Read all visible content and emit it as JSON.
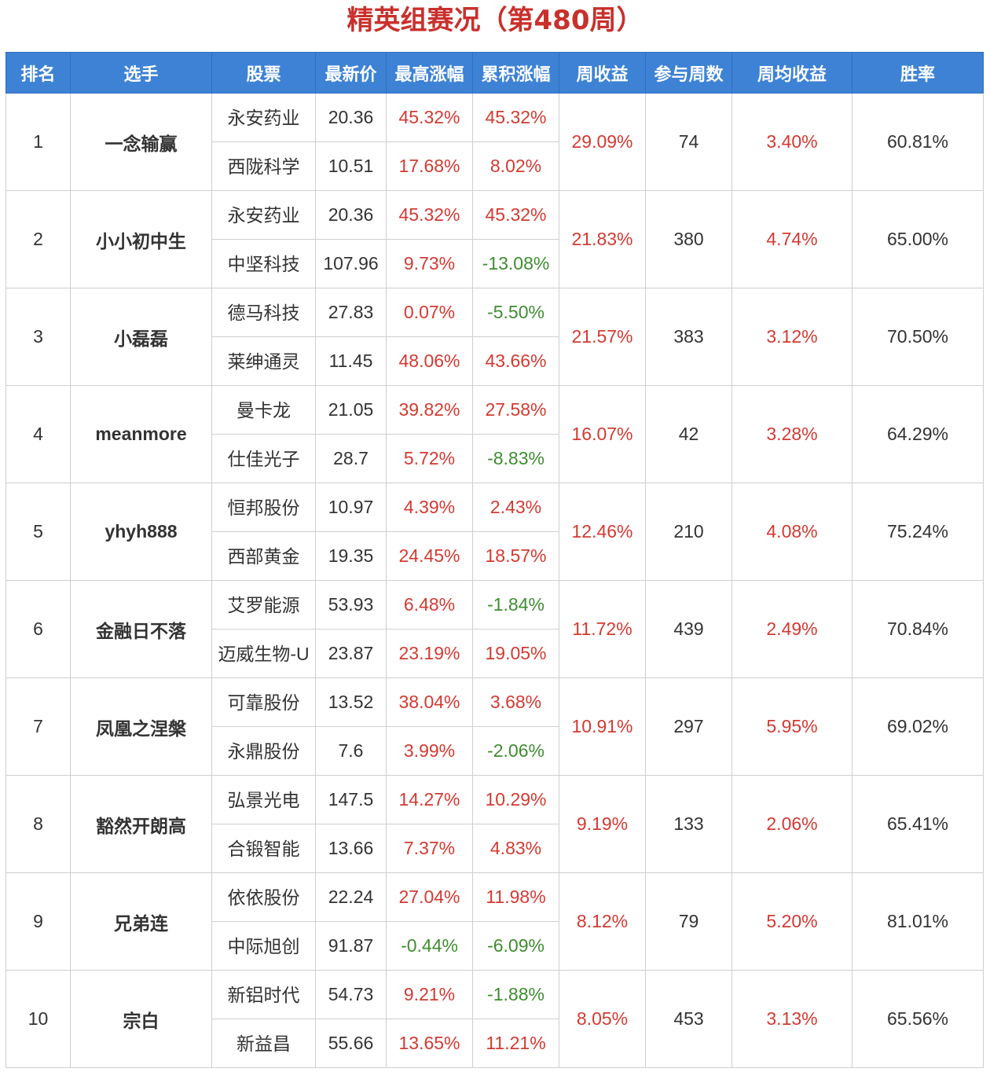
{
  "title": "精英组赛况（第480周）",
  "headers": [
    "排名",
    "选手",
    "股票",
    "最新价",
    "最高涨幅",
    "累积涨幅",
    "周收益",
    "参与周数",
    "周均收益",
    "胜率"
  ],
  "rows": [
    {
      "rank": "1",
      "player": "一念输赢",
      "week_return": "29.09%",
      "weeks": "74",
      "avg_return": "3.40%",
      "win_rate": "60.81%",
      "stocks": [
        {
          "name": "永安药业",
          "price": "20.36",
          "max_gain": "45.32%",
          "cum_gain": "45.32%"
        },
        {
          "name": "西陇科学",
          "price": "10.51",
          "max_gain": "17.68%",
          "cum_gain": "8.02%"
        }
      ]
    },
    {
      "rank": "2",
      "player": "小小初中生",
      "week_return": "21.83%",
      "weeks": "380",
      "avg_return": "4.74%",
      "win_rate": "65.00%",
      "stocks": [
        {
          "name": "永安药业",
          "price": "20.36",
          "max_gain": "45.32%",
          "cum_gain": "45.32%"
        },
        {
          "name": "中坚科技",
          "price": "107.96",
          "max_gain": "9.73%",
          "cum_gain": "-13.08%"
        }
      ]
    },
    {
      "rank": "3",
      "player": "小磊磊",
      "week_return": "21.57%",
      "weeks": "383",
      "avg_return": "3.12%",
      "win_rate": "70.50%",
      "stocks": [
        {
          "name": "德马科技",
          "price": "27.83",
          "max_gain": "0.07%",
          "cum_gain": "-5.50%"
        },
        {
          "name": "莱绅通灵",
          "price": "11.45",
          "max_gain": "48.06%",
          "cum_gain": "43.66%"
        }
      ]
    },
    {
      "rank": "4",
      "player": "meanmore",
      "week_return": "16.07%",
      "weeks": "42",
      "avg_return": "3.28%",
      "win_rate": "64.29%",
      "stocks": [
        {
          "name": "曼卡龙",
          "price": "21.05",
          "max_gain": "39.82%",
          "cum_gain": "27.58%"
        },
        {
          "name": "仕佳光子",
          "price": "28.7",
          "max_gain": "5.72%",
          "cum_gain": "-8.83%"
        }
      ]
    },
    {
      "rank": "5",
      "player": "yhyh888",
      "week_return": "12.46%",
      "weeks": "210",
      "avg_return": "4.08%",
      "win_rate": "75.24%",
      "stocks": [
        {
          "name": "恒邦股份",
          "price": "10.97",
          "max_gain": "4.39%",
          "cum_gain": "2.43%"
        },
        {
          "name": "西部黄金",
          "price": "19.35",
          "max_gain": "24.45%",
          "cum_gain": "18.57%"
        }
      ]
    },
    {
      "rank": "6",
      "player": "金融日不落",
      "week_return": "11.72%",
      "weeks": "439",
      "avg_return": "2.49%",
      "win_rate": "70.84%",
      "stocks": [
        {
          "name": "艾罗能源",
          "price": "53.93",
          "max_gain": "6.48%",
          "cum_gain": "-1.84%"
        },
        {
          "name": "迈威生物-U",
          "price": "23.87",
          "max_gain": "23.19%",
          "cum_gain": "19.05%"
        }
      ]
    },
    {
      "rank": "7",
      "player": "凤凰之涅槃",
      "week_return": "10.91%",
      "weeks": "297",
      "avg_return": "5.95%",
      "win_rate": "69.02%",
      "stocks": [
        {
          "name": "可靠股份",
          "price": "13.52",
          "max_gain": "38.04%",
          "cum_gain": "3.68%"
        },
        {
          "name": "永鼎股份",
          "price": "7.6",
          "max_gain": "3.99%",
          "cum_gain": "-2.06%"
        }
      ]
    },
    {
      "rank": "8",
      "player": "豁然开朗高",
      "week_return": "9.19%",
      "weeks": "133",
      "avg_return": "2.06%",
      "win_rate": "65.41%",
      "stocks": [
        {
          "name": "弘景光电",
          "price": "147.5",
          "max_gain": "14.27%",
          "cum_gain": "10.29%"
        },
        {
          "name": "合锻智能",
          "price": "13.66",
          "max_gain": "7.37%",
          "cum_gain": "4.83%"
        }
      ]
    },
    {
      "rank": "9",
      "player": "兄弟连",
      "week_return": "8.12%",
      "weeks": "79",
      "avg_return": "5.20%",
      "win_rate": "81.01%",
      "stocks": [
        {
          "name": "依依股份",
          "price": "22.24",
          "max_gain": "27.04%",
          "cum_gain": "11.98%"
        },
        {
          "name": "中际旭创",
          "price": "91.87",
          "max_gain": "-0.44%",
          "cum_gain": "-6.09%"
        }
      ]
    },
    {
      "rank": "10",
      "player": "宗白",
      "week_return": "8.05%",
      "weeks": "453",
      "avg_return": "3.13%",
      "win_rate": "65.56%",
      "stocks": [
        {
          "name": "新铝时代",
          "price": "54.73",
          "max_gain": "9.21%",
          "cum_gain": "-1.88%"
        },
        {
          "name": "新益昌",
          "price": "55.66",
          "max_gain": "13.65%",
          "cum_gain": "11.21%"
        }
      ]
    }
  ]
}
